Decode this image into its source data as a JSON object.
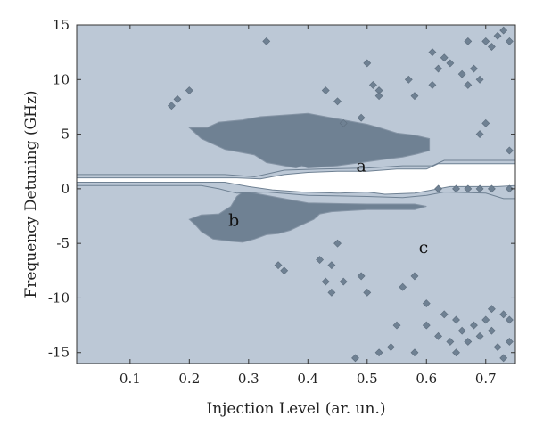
{
  "chart_data": {
    "type": "contour",
    "title": "",
    "xlabel": "Injection Level (ar. un.)",
    "ylabel": "Frequency Detuning (GHz)",
    "xlim": [
      0.01,
      0.75
    ],
    "ylim": [
      -16,
      15
    ],
    "xticks": [
      0.1,
      0.2,
      0.3,
      0.4,
      0.5,
      0.6,
      0.7
    ],
    "xtick_labels": [
      "0.1",
      "0.2",
      "0.3",
      "0.4",
      "0.5",
      "0.6",
      "0.7"
    ],
    "yticks": [
      -15,
      -10,
      -5,
      0,
      5,
      10,
      15
    ],
    "ytick_labels": [
      "-15",
      "-10",
      "-5",
      "0",
      "5",
      "10",
      "15"
    ],
    "colors": {
      "background": "#bcc8d6",
      "dark_region": "#6f8193",
      "stable_region": "#ffffff",
      "contour_line": "#6f8193"
    },
    "regions": [
      {
        "name": "upper_dark_island",
        "fill": "dark",
        "polygon": [
          [
            0.2,
            5.6
          ],
          [
            0.23,
            5.6
          ],
          [
            0.25,
            6.1
          ],
          [
            0.29,
            6.3
          ],
          [
            0.32,
            6.6
          ],
          [
            0.4,
            6.9
          ],
          [
            0.44,
            6.5
          ],
          [
            0.46,
            6.3
          ],
          [
            0.5,
            5.9
          ],
          [
            0.52,
            5.6
          ],
          [
            0.55,
            5.1
          ],
          [
            0.58,
            4.9
          ],
          [
            0.605,
            4.6
          ],
          [
            0.605,
            3.5
          ],
          [
            0.585,
            3.2
          ],
          [
            0.56,
            2.9
          ],
          [
            0.53,
            2.7
          ],
          [
            0.49,
            2.4
          ],
          [
            0.45,
            2.1
          ],
          [
            0.4,
            1.9
          ],
          [
            0.39,
            2.1
          ],
          [
            0.38,
            1.9
          ],
          [
            0.35,
            2.2
          ],
          [
            0.33,
            2.4
          ],
          [
            0.31,
            3.1
          ],
          [
            0.26,
            3.6
          ],
          [
            0.24,
            4.1
          ],
          [
            0.22,
            4.6
          ],
          [
            0.21,
            5.1
          ]
        ]
      },
      {
        "name": "lower_dark_island",
        "fill": "dark",
        "polygon": [
          [
            0.2,
            -2.8
          ],
          [
            0.22,
            -2.4
          ],
          [
            0.25,
            -2.3
          ],
          [
            0.27,
            -1.6
          ],
          [
            0.28,
            -0.7
          ],
          [
            0.29,
            -0.3
          ],
          [
            0.31,
            -0.4
          ],
          [
            0.33,
            -0.6
          ],
          [
            0.35,
            -0.8
          ],
          [
            0.4,
            -1.3
          ],
          [
            0.5,
            -1.4
          ],
          [
            0.58,
            -1.4
          ],
          [
            0.6,
            -1.6
          ],
          [
            0.58,
            -1.9
          ],
          [
            0.5,
            -1.9
          ],
          [
            0.44,
            -2.1
          ],
          [
            0.42,
            -2.3
          ],
          [
            0.41,
            -2.8
          ],
          [
            0.39,
            -3.3
          ],
          [
            0.37,
            -3.8
          ],
          [
            0.35,
            -4.1
          ],
          [
            0.33,
            -4.2
          ],
          [
            0.31,
            -4.6
          ],
          [
            0.29,
            -4.9
          ],
          [
            0.27,
            -4.8
          ],
          [
            0.24,
            -4.6
          ],
          [
            0.22,
            -3.9
          ],
          [
            0.21,
            -3.3
          ]
        ]
      },
      {
        "name": "stable_band_a",
        "fill": "white",
        "polygon": [
          [
            0.01,
            1.0
          ],
          [
            0.28,
            1.0
          ],
          [
            0.32,
            0.9
          ],
          [
            0.36,
            1.3
          ],
          [
            0.4,
            1.5
          ],
          [
            0.45,
            1.6
          ],
          [
            0.5,
            1.6
          ],
          [
            0.55,
            1.8
          ],
          [
            0.6,
            1.8
          ],
          [
            0.62,
            2.3
          ],
          [
            0.75,
            2.3
          ],
          [
            0.75,
            0.3
          ],
          [
            0.72,
            0.2
          ],
          [
            0.64,
            0.2
          ],
          [
            0.61,
            -0.1
          ],
          [
            0.58,
            -0.4
          ],
          [
            0.53,
            -0.5
          ],
          [
            0.5,
            -0.3
          ],
          [
            0.45,
            -0.4
          ],
          [
            0.39,
            -0.3
          ],
          [
            0.34,
            -0.1
          ],
          [
            0.3,
            0.2
          ],
          [
            0.26,
            0.6
          ],
          [
            0.22,
            0.6
          ],
          [
            0.01,
            0.6
          ]
        ]
      }
    ],
    "contour_lines": [
      {
        "name": "upper_band_outline",
        "points": [
          [
            0.01,
            1.3
          ],
          [
            0.26,
            1.3
          ],
          [
            0.31,
            1.1
          ],
          [
            0.36,
            1.7
          ],
          [
            0.42,
            1.8
          ],
          [
            0.5,
            1.9
          ],
          [
            0.56,
            2.1
          ],
          [
            0.61,
            2.1
          ],
          [
            0.63,
            2.6
          ],
          [
            0.75,
            2.6
          ]
        ]
      },
      {
        "name": "lower_band_outline",
        "points": [
          [
            0.01,
            0.3
          ],
          [
            0.22,
            0.3
          ],
          [
            0.25,
            0.0
          ],
          [
            0.28,
            -0.4
          ],
          [
            0.33,
            -0.3
          ],
          [
            0.4,
            -0.6
          ],
          [
            0.5,
            -0.7
          ],
          [
            0.56,
            -0.8
          ],
          [
            0.6,
            -0.6
          ],
          [
            0.63,
            -0.3
          ],
          [
            0.7,
            -0.4
          ],
          [
            0.73,
            -0.9
          ],
          [
            0.75,
            -0.9
          ]
        ]
      }
    ],
    "speckles": [
      [
        0.33,
        13.5
      ],
      [
        0.17,
        7.6
      ],
      [
        0.18,
        8.2
      ],
      [
        0.2,
        9.0
      ],
      [
        0.43,
        9.0
      ],
      [
        0.45,
        8.0
      ],
      [
        0.46,
        6.0
      ],
      [
        0.49,
        6.5
      ],
      [
        0.5,
        11.5
      ],
      [
        0.51,
        9.5
      ],
      [
        0.52,
        9.0
      ],
      [
        0.52,
        8.5
      ],
      [
        0.57,
        10.0
      ],
      [
        0.58,
        8.5
      ],
      [
        0.61,
        9.5
      ],
      [
        0.61,
        12.5
      ],
      [
        0.62,
        11.0
      ],
      [
        0.63,
        12.0
      ],
      [
        0.64,
        11.5
      ],
      [
        0.66,
        10.5
      ],
      [
        0.67,
        9.5
      ],
      [
        0.68,
        11.0
      ],
      [
        0.69,
        10.0
      ],
      [
        0.67,
        13.5
      ],
      [
        0.7,
        13.5
      ],
      [
        0.71,
        13.0
      ],
      [
        0.72,
        14.0
      ],
      [
        0.73,
        14.5
      ],
      [
        0.74,
        13.5
      ],
      [
        0.7,
        6.0
      ],
      [
        0.69,
        5.0
      ],
      [
        0.74,
        3.5
      ],
      [
        0.62,
        0.0
      ],
      [
        0.65,
        0.0
      ],
      [
        0.67,
        0.0
      ],
      [
        0.69,
        0.0
      ],
      [
        0.71,
        0.0
      ],
      [
        0.74,
        0.0
      ],
      [
        0.35,
        -7.0
      ],
      [
        0.36,
        -7.5
      ],
      [
        0.42,
        -6.5
      ],
      [
        0.44,
        -7.0
      ],
      [
        0.45,
        -5.0
      ],
      [
        0.43,
        -8.5
      ],
      [
        0.46,
        -8.5
      ],
      [
        0.44,
        -9.5
      ],
      [
        0.49,
        -8.0
      ],
      [
        0.5,
        -9.5
      ],
      [
        0.56,
        -9.0
      ],
      [
        0.58,
        -8.0
      ],
      [
        0.6,
        -10.5
      ],
      [
        0.63,
        -11.5
      ],
      [
        0.55,
        -12.5
      ],
      [
        0.54,
        -14.5
      ],
      [
        0.52,
        -15.0
      ],
      [
        0.6,
        -12.5
      ],
      [
        0.62,
        -13.5
      ],
      [
        0.65,
        -12.0
      ],
      [
        0.66,
        -13.0
      ],
      [
        0.67,
        -14.0
      ],
      [
        0.68,
        -12.5
      ],
      [
        0.69,
        -13.5
      ],
      [
        0.7,
        -12.0
      ],
      [
        0.71,
        -13.0
      ],
      [
        0.72,
        -14.5
      ],
      [
        0.73,
        -15.5
      ],
      [
        0.74,
        -14.0
      ],
      [
        0.74,
        -12.0
      ],
      [
        0.73,
        -11.5
      ],
      [
        0.65,
        -15.0
      ],
      [
        0.64,
        -14.0
      ],
      [
        0.58,
        -15.0
      ],
      [
        0.48,
        -15.5
      ],
      [
        0.71,
        -11.0
      ]
    ],
    "annotations": [
      {
        "text": "a",
        "x": 0.49,
        "y": 1.6
      },
      {
        "text": "b",
        "x": 0.275,
        "y": -3.4
      },
      {
        "text": "c",
        "x": 0.595,
        "y": -5.9
      }
    ]
  }
}
